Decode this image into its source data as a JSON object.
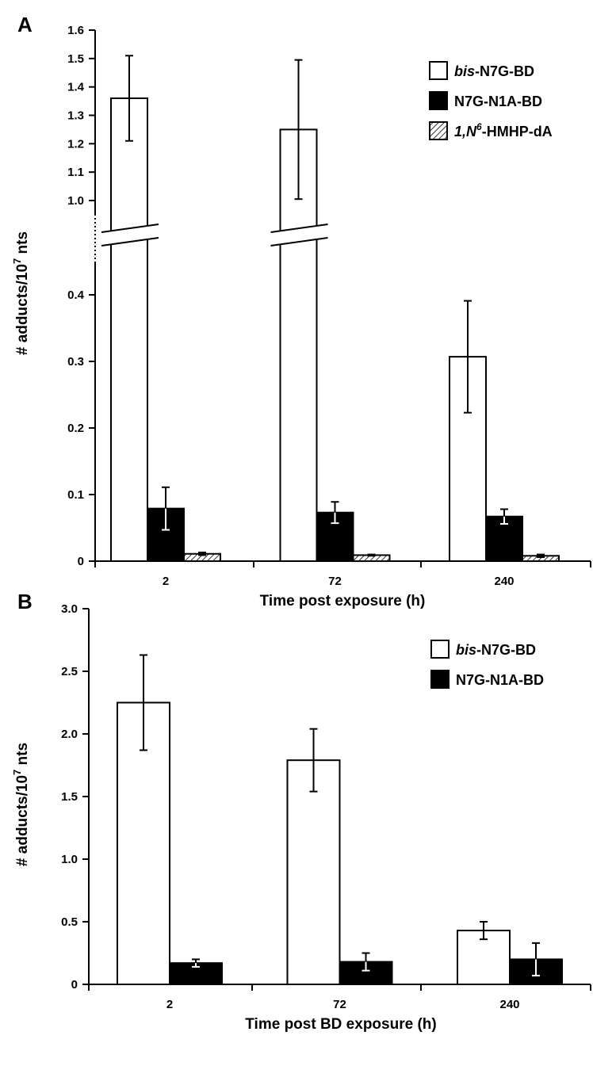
{
  "chart_data": [
    {
      "panel": "A",
      "type": "bar",
      "categories": [
        "2",
        "72",
        "240"
      ],
      "xlabel": "Time post exposure (h)",
      "ylabel": "# adducts/10^7 nts",
      "ylim": [
        0,
        1.6
      ],
      "axis_break": [
        0.45,
        0.95
      ],
      "lower_ticks": [
        "0",
        "0.1",
        "0.2",
        "0.3",
        "0.4"
      ],
      "upper_ticks": [
        "1.0",
        "1.1",
        "1.2",
        "1.3",
        "1.4",
        "1.5",
        "1.6"
      ],
      "legend_position": "top-right",
      "series": [
        {
          "name_italic": "bis",
          "name_rest": "-N7G-BD",
          "fill": "white",
          "values": [
            1.36,
            1.25,
            0.307
          ],
          "errors": [
            0.15,
            0.245,
            0.084
          ]
        },
        {
          "name_italic": "",
          "name_rest": "N7G-N1A-BD",
          "fill": "black",
          "values": [
            0.079,
            0.073,
            0.067
          ],
          "errors": [
            0.032,
            0.016,
            0.011
          ]
        },
        {
          "name_italic": "1,N",
          "name_sup": "6",
          "name_rest": "-HMHP-dA",
          "fill": "hatch",
          "values": [
            0.011,
            0.009,
            0.008
          ],
          "errors": [
            0.002,
            0.001,
            0.002
          ]
        }
      ]
    },
    {
      "panel": "B",
      "type": "bar",
      "categories": [
        "2",
        "72",
        "240"
      ],
      "xlabel": "Time post BD exposure (h)",
      "ylabel": "# adducts/10^7 nts",
      "ylim": [
        0,
        3.0
      ],
      "ticks": [
        "0",
        "0.5",
        "1.0",
        "1.5",
        "2.0",
        "2.5",
        "3.0"
      ],
      "legend_position": "top-right",
      "series": [
        {
          "name_italic": "bis",
          "name_rest": "-N7G-BD",
          "fill": "white",
          "values": [
            2.25,
            1.79,
            0.43
          ],
          "errors": [
            0.38,
            0.25,
            0.07
          ]
        },
        {
          "name_italic": "",
          "name_rest": "N7G-N1A-BD",
          "fill": "black",
          "values": [
            0.17,
            0.18,
            0.2
          ],
          "errors": [
            0.03,
            0.07,
            0.13
          ]
        }
      ]
    }
  ]
}
